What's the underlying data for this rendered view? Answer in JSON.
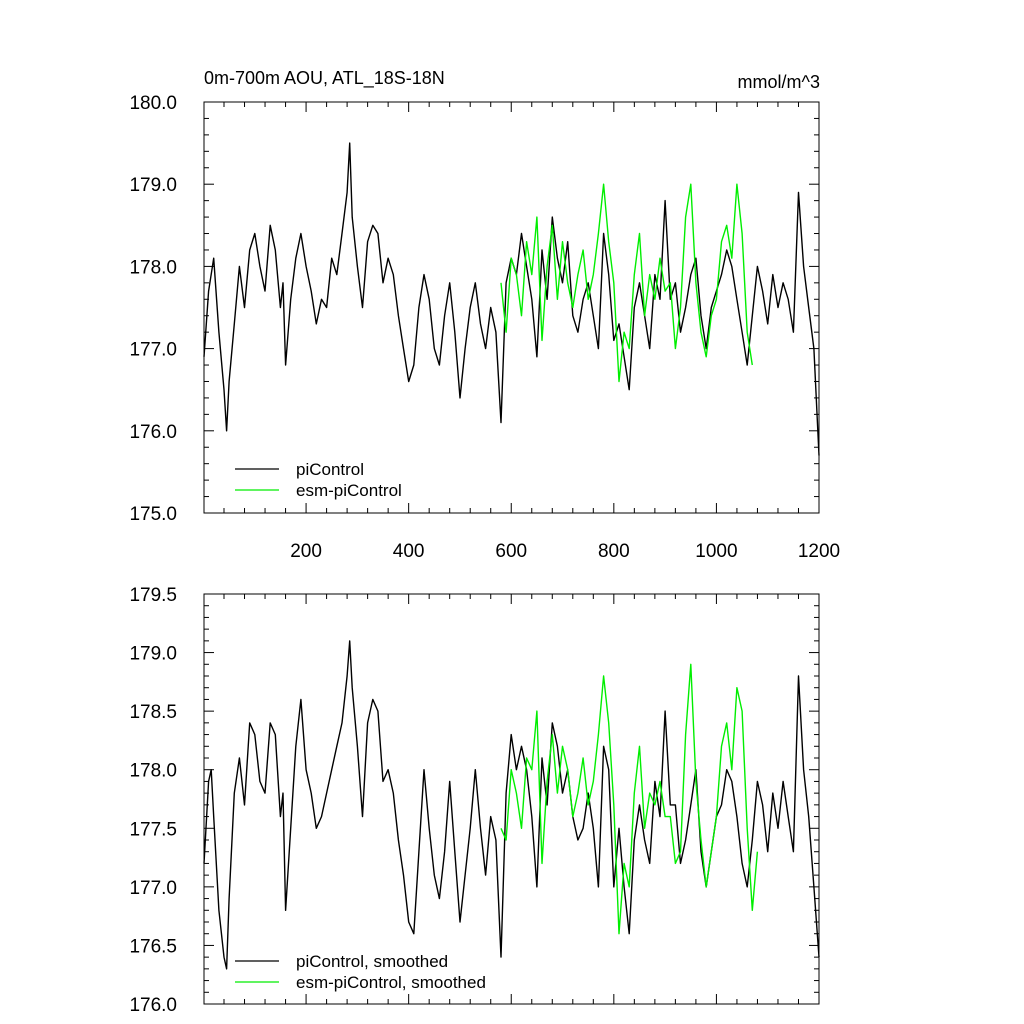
{
  "chart_data": [
    {
      "type": "line",
      "title": "0m-700m AOU, ATL_18S-18N",
      "units": "mmol/m^3",
      "xlim": [
        1,
        1200
      ],
      "ylim": [
        175.0,
        180.0
      ],
      "x_ticks": [
        200,
        400,
        600,
        800,
        1000,
        1200
      ],
      "x_tick_labels": [
        "200",
        "400",
        "600",
        "800",
        "1000",
        "1200"
      ],
      "y_ticks": [
        175.0,
        176.0,
        177.0,
        178.0,
        179.0,
        180.0
      ],
      "y_tick_labels": [
        "175.0",
        "176.0",
        "177.0",
        "178.0",
        "179.0",
        "180.0"
      ],
      "legend_position": "bottom-left",
      "series": [
        {
          "name": "piControl",
          "color": "#000000",
          "x": [
            1,
            10,
            20,
            30,
            40,
            45,
            50,
            60,
            70,
            80,
            90,
            100,
            110,
            120,
            130,
            140,
            150,
            155,
            160,
            170,
            180,
            190,
            200,
            210,
            220,
            230,
            240,
            250,
            260,
            270,
            280,
            285,
            290,
            300,
            310,
            320,
            330,
            340,
            350,
            360,
            370,
            380,
            390,
            400,
            410,
            420,
            430,
            440,
            450,
            460,
            470,
            480,
            490,
            500,
            510,
            520,
            530,
            540,
            550,
            560,
            570,
            580,
            590,
            600,
            610,
            620,
            630,
            640,
            650,
            660,
            670,
            680,
            690,
            700,
            710,
            720,
            730,
            740,
            750,
            760,
            770,
            780,
            790,
            800,
            810,
            820,
            830,
            840,
            850,
            860,
            870,
            880,
            890,
            900,
            910,
            920,
            930,
            940,
            950,
            960,
            970,
            980,
            990,
            1000,
            1010,
            1020,
            1030,
            1040,
            1050,
            1060,
            1070,
            1080,
            1090,
            1100,
            1110,
            1120,
            1130,
            1140,
            1150,
            1160,
            1170,
            1180,
            1190,
            1200
          ],
          "values": [
            176.9,
            177.7,
            178.1,
            177.2,
            176.5,
            176.0,
            176.6,
            177.3,
            178.0,
            177.5,
            178.2,
            178.4,
            178.0,
            177.7,
            178.5,
            178.2,
            177.5,
            177.8,
            176.8,
            177.6,
            178.1,
            178.4,
            178.0,
            177.7,
            177.3,
            177.6,
            177.5,
            178.1,
            177.9,
            178.4,
            178.9,
            179.5,
            178.6,
            178.0,
            177.5,
            178.3,
            178.5,
            178.4,
            177.8,
            178.1,
            177.9,
            177.4,
            177.0,
            176.6,
            176.8,
            177.5,
            177.9,
            177.6,
            177.0,
            176.8,
            177.4,
            177.8,
            177.2,
            176.4,
            177.0,
            177.5,
            177.8,
            177.3,
            177.0,
            177.5,
            177.2,
            176.1,
            177.8,
            178.1,
            177.9,
            178.4,
            178.0,
            177.6,
            176.9,
            178.2,
            177.6,
            178.6,
            178.1,
            177.8,
            178.3,
            177.4,
            177.2,
            177.6,
            177.8,
            177.4,
            177.0,
            178.4,
            177.9,
            177.1,
            177.3,
            176.9,
            176.5,
            177.5,
            177.8,
            177.4,
            177.0,
            177.9,
            177.6,
            178.8,
            177.6,
            177.8,
            177.2,
            177.5,
            177.9,
            178.1,
            177.4,
            177.0,
            177.5,
            177.7,
            177.9,
            178.2,
            178.0,
            177.6,
            177.2,
            176.8,
            177.4,
            178.0,
            177.7,
            177.3,
            177.9,
            177.5,
            177.8,
            177.6,
            177.2,
            178.9,
            178.0,
            177.5,
            177.0,
            175.7
          ]
        },
        {
          "name": "esm-piControl",
          "color": "#00ee00",
          "x": [
            580,
            590,
            600,
            610,
            620,
            630,
            640,
            650,
            660,
            670,
            680,
            690,
            700,
            710,
            720,
            730,
            740,
            750,
            760,
            770,
            780,
            790,
            800,
            810,
            820,
            830,
            840,
            850,
            860,
            870,
            880,
            890,
            900,
            910,
            920,
            930,
            940,
            950,
            960,
            970,
            980,
            990,
            1000,
            1010,
            1020,
            1030,
            1040,
            1050,
            1060,
            1070
          ],
          "values": [
            177.8,
            177.2,
            178.1,
            177.9,
            177.4,
            178.3,
            177.9,
            178.6,
            177.1,
            178.0,
            178.5,
            177.6,
            178.3,
            177.8,
            177.5,
            177.9,
            178.2,
            177.6,
            177.9,
            178.4,
            179.0,
            178.3,
            177.8,
            176.6,
            177.2,
            177.0,
            177.9,
            178.4,
            177.4,
            177.9,
            177.6,
            178.1,
            177.7,
            177.8,
            177.0,
            177.5,
            178.6,
            179.0,
            177.8,
            177.2,
            176.9,
            177.4,
            177.6,
            178.3,
            178.5,
            178.1,
            179.0,
            178.4,
            177.2,
            176.8
          ]
        }
      ]
    },
    {
      "type": "line",
      "title": "",
      "xlim": [
        1,
        1200
      ],
      "ylim": [
        176.0,
        179.5
      ],
      "x_ticks": [
        200,
        400,
        600,
        800,
        1000,
        1200
      ],
      "y_ticks": [
        176.0,
        176.5,
        177.0,
        177.5,
        178.0,
        178.5,
        179.0,
        179.5
      ],
      "y_tick_labels": [
        "176.0",
        "176.5",
        "177.0",
        "177.5",
        "178.0",
        "178.5",
        "179.0",
        "179.5"
      ],
      "legend_position": "bottom-left",
      "series": [
        {
          "name": "piControl, smoothed",
          "color": "#000000",
          "x": [
            1,
            10,
            15,
            20,
            30,
            40,
            45,
            50,
            60,
            70,
            80,
            90,
            100,
            110,
            120,
            130,
            140,
            150,
            155,
            160,
            170,
            180,
            190,
            200,
            210,
            220,
            230,
            240,
            250,
            260,
            270,
            280,
            285,
            290,
            300,
            310,
            320,
            330,
            340,
            350,
            360,
            370,
            380,
            390,
            400,
            410,
            420,
            430,
            440,
            450,
            460,
            470,
            480,
            490,
            500,
            510,
            520,
            530,
            540,
            550,
            560,
            570,
            580,
            590,
            600,
            610,
            620,
            630,
            640,
            650,
            660,
            670,
            680,
            690,
            700,
            710,
            720,
            730,
            740,
            750,
            760,
            770,
            780,
            790,
            800,
            810,
            820,
            830,
            840,
            850,
            860,
            870,
            880,
            890,
            900,
            910,
            920,
            930,
            940,
            950,
            960,
            970,
            980,
            990,
            1000,
            1010,
            1020,
            1030,
            1040,
            1050,
            1060,
            1070,
            1080,
            1090,
            1100,
            1110,
            1120,
            1130,
            1140,
            1150,
            1160,
            1170,
            1180,
            1190,
            1200
          ],
          "values": [
            177.2,
            177.9,
            178.0,
            177.6,
            176.8,
            176.4,
            176.3,
            176.9,
            177.8,
            178.1,
            177.7,
            178.4,
            178.3,
            177.9,
            177.8,
            178.4,
            178.3,
            177.6,
            177.8,
            176.8,
            177.5,
            178.2,
            178.6,
            178.0,
            177.8,
            177.5,
            177.6,
            177.8,
            178.0,
            178.2,
            178.4,
            178.8,
            179.1,
            178.7,
            178.2,
            177.6,
            178.4,
            178.6,
            178.5,
            177.9,
            178.0,
            177.8,
            177.4,
            177.1,
            176.7,
            176.6,
            177.3,
            178.0,
            177.5,
            177.1,
            176.9,
            177.3,
            177.9,
            177.3,
            176.7,
            177.1,
            177.5,
            178.0,
            177.5,
            177.1,
            177.6,
            177.4,
            176.4,
            177.8,
            178.3,
            178.0,
            178.2,
            178.0,
            177.6,
            177.0,
            178.1,
            177.7,
            178.4,
            178.2,
            177.8,
            178.0,
            177.6,
            177.4,
            177.5,
            177.8,
            177.5,
            177.0,
            178.2,
            178.0,
            177.0,
            177.5,
            177.0,
            176.6,
            177.4,
            177.7,
            177.4,
            177.2,
            177.9,
            177.6,
            178.5,
            177.7,
            177.7,
            177.2,
            177.4,
            177.7,
            178.0,
            177.3,
            177.0,
            177.3,
            177.6,
            177.7,
            178.0,
            177.9,
            177.6,
            177.2,
            177.0,
            177.4,
            177.9,
            177.7,
            177.3,
            177.8,
            177.5,
            177.9,
            177.6,
            177.3,
            178.8,
            178.0,
            177.6,
            177.0,
            176.4
          ]
        },
        {
          "name": "esm-piControl, smoothed",
          "color": "#00ee00",
          "x": [
            580,
            590,
            600,
            610,
            620,
            630,
            640,
            650,
            660,
            670,
            680,
            690,
            700,
            710,
            720,
            730,
            740,
            750,
            760,
            770,
            780,
            790,
            800,
            810,
            820,
            830,
            840,
            850,
            860,
            870,
            880,
            890,
            900,
            910,
            920,
            930,
            940,
            950,
            960,
            970,
            980,
            990,
            1000,
            1010,
            1020,
            1030,
            1040,
            1050,
            1060,
            1070,
            1080
          ],
          "values": [
            177.5,
            177.4,
            178.0,
            177.8,
            177.5,
            178.1,
            178.0,
            178.5,
            177.2,
            177.9,
            178.3,
            177.8,
            178.2,
            178.0,
            177.6,
            177.8,
            178.1,
            177.7,
            177.9,
            178.3,
            178.8,
            178.4,
            177.7,
            176.6,
            177.2,
            177.0,
            177.8,
            178.2,
            177.5,
            177.8,
            177.7,
            177.9,
            177.6,
            177.6,
            177.2,
            177.3,
            178.3,
            178.9,
            177.9,
            177.4,
            177.0,
            177.3,
            177.6,
            178.2,
            178.4,
            178.0,
            178.7,
            178.5,
            177.5,
            176.8,
            177.3
          ]
        }
      ]
    }
  ]
}
